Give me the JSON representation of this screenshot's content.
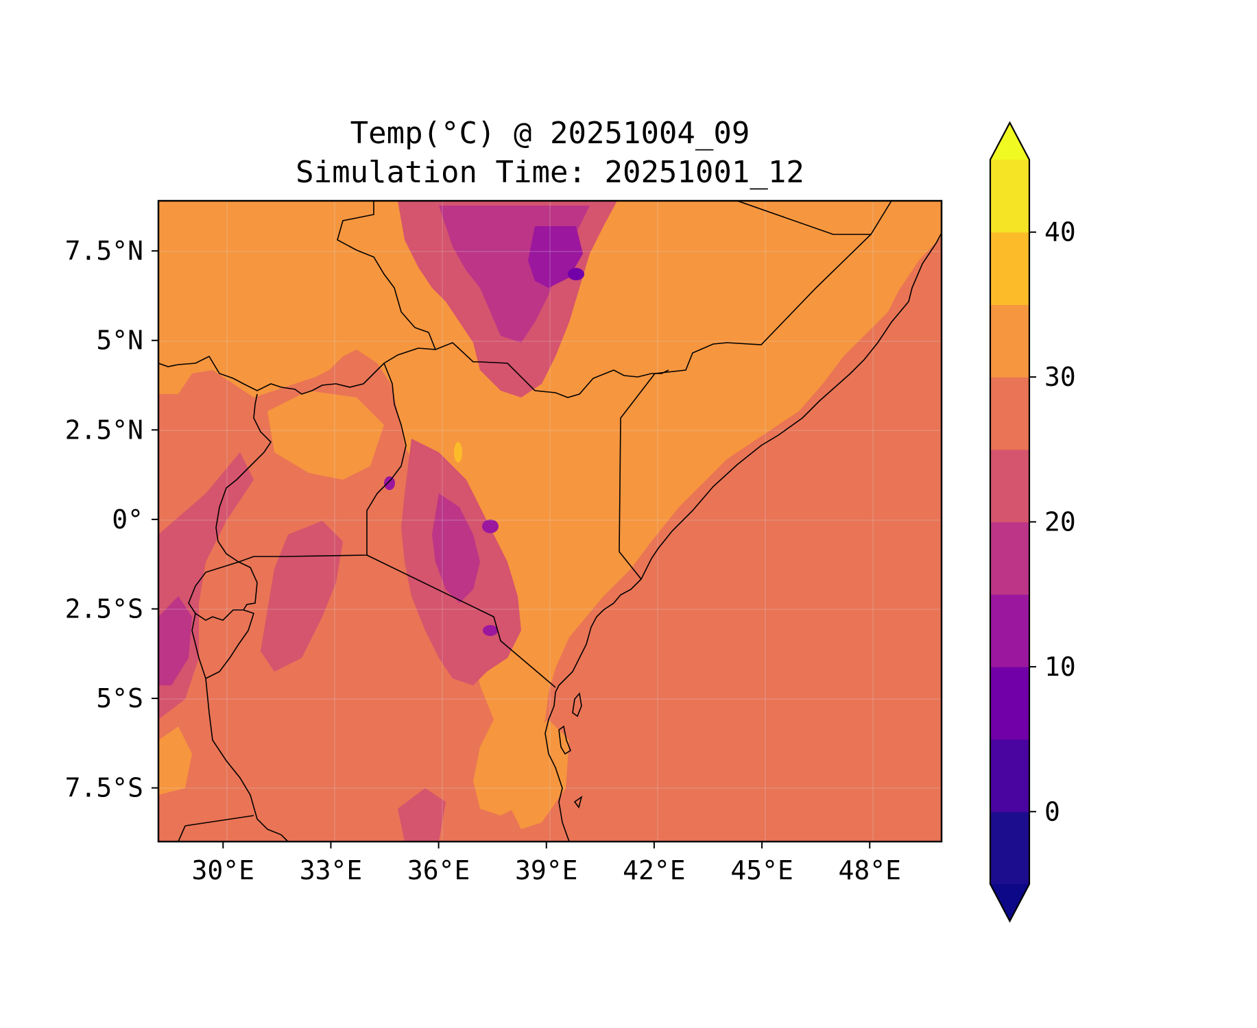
{
  "chart_data": {
    "type": "heatmap",
    "title": "Temp(°C) @ 20251004_09",
    "subtitle": "Simulation Time: 20251001_12",
    "variable": "Temp",
    "units": "°C",
    "lon_range": [
      28.2,
      50.0
    ],
    "lat_range": [
      -9.0,
      8.9
    ],
    "x_ticks": [
      {
        "value": 30,
        "label": "30°E"
      },
      {
        "value": 33,
        "label": "33°E"
      },
      {
        "value": 36,
        "label": "36°E"
      },
      {
        "value": 39,
        "label": "39°E"
      },
      {
        "value": 42,
        "label": "42°E"
      },
      {
        "value": 45,
        "label": "45°E"
      },
      {
        "value": 48,
        "label": "48°E"
      }
    ],
    "y_ticks": [
      {
        "value": 7.5,
        "label": "7.5°N"
      },
      {
        "value": 5,
        "label": "5°N"
      },
      {
        "value": 2.5,
        "label": "2.5°N"
      },
      {
        "value": 0,
        "label": "0°"
      },
      {
        "value": -2.5,
        "label": "2.5°S"
      },
      {
        "value": -5,
        "label": "5°S"
      },
      {
        "value": -7.5,
        "label": "7.5°S"
      }
    ],
    "grid": true,
    "colorbar": {
      "levels": [
        -5,
        0,
        5,
        10,
        15,
        20,
        25,
        30,
        35,
        40,
        45
      ],
      "colors": [
        "#1c0d8e",
        "#4a04a0",
        "#7200a8",
        "#9b179e",
        "#bc3587",
        "#d5546e",
        "#e97456",
        "#f6963f",
        "#fcbc2a",
        "#f4e425"
      ],
      "extend_low_color": "#0d0887",
      "extend_high_color": "#f0f921",
      "tick_values": [
        0,
        10,
        20,
        30,
        40
      ],
      "tick_labels": [
        "0",
        "10",
        "20",
        "30",
        "40"
      ],
      "position": "right",
      "extend": "both"
    },
    "dominant_values": {
      "indian_ocean": 27.5,
      "north_eastern_lowlands": 32.5,
      "ethiopian_highlands_min": 7.5
    }
  }
}
